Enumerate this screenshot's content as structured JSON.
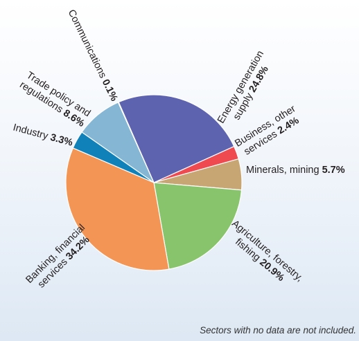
{
  "chart_data": {
    "type": "pie",
    "slices": [
      {
        "label": "Energy generation supply",
        "value": 24.8,
        "value_label": "24.8%",
        "color": "#5e63b0"
      },
      {
        "label": "Business, other services",
        "value": 2.4,
        "value_label": "2.4%",
        "color": "#ef4a50"
      },
      {
        "label": "Minerals, mining",
        "value": 5.7,
        "value_label": "5.7%",
        "color": "#c8a673"
      },
      {
        "label": "Agriculture, forestry, fishing",
        "value": 20.9,
        "value_label": "20.9%",
        "color": "#87c46b"
      },
      {
        "label": "Banking, financial services",
        "value": 34.2,
        "value_label": "34.2%",
        "color": "#f39655"
      },
      {
        "label": "Industry",
        "value": 3.3,
        "value_label": "3.3%",
        "color": "#1082b9"
      },
      {
        "label": "Trade policy and regulations",
        "value": 8.6,
        "value_label": "8.6%",
        "color": "#85b7d5"
      },
      {
        "label": "Communications",
        "value": 0.1,
        "value_label": "0.1%",
        "color": "#999999"
      }
    ]
  },
  "footnote": "Sectors with no data are not included."
}
